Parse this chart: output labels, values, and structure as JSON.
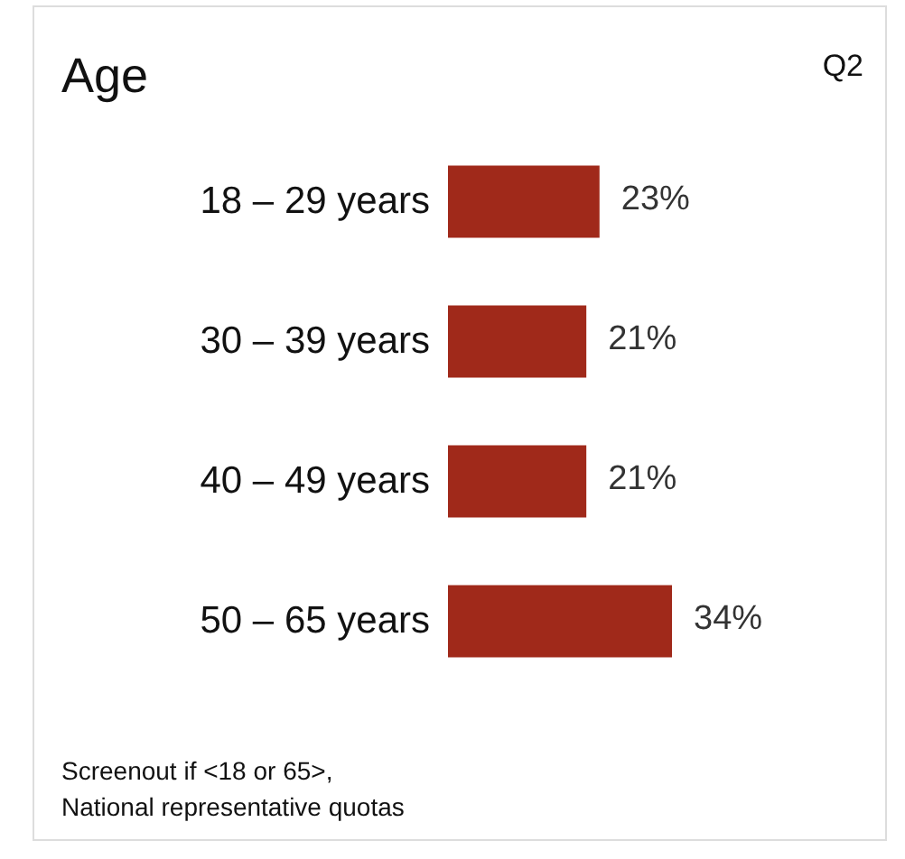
{
  "chart_data": {
    "type": "bar",
    "orientation": "horizontal",
    "title": "Age",
    "categories": [
      "18 – 29 years",
      "30 – 39 years",
      "40 – 49 years",
      "50 – 65 years"
    ],
    "values": [
      23,
      21,
      21,
      34
    ],
    "color": "#a0291a",
    "value_labels": [
      "23%",
      "21%",
      "21%",
      "34%"
    ],
    "annotations": [
      "Q2",
      "Screenout if <18 or 65>,\nNational representative quotas"
    ]
  }
}
